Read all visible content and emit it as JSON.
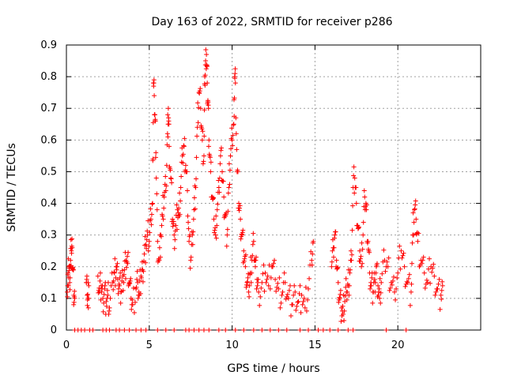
{
  "chart_data": {
    "type": "scatter",
    "title": "Day 163 of 2022, SRMTID for receiver p286",
    "xlabel": "GPS time / hours",
    "ylabel": "SRMTID / TECUs",
    "xlim": [
      0,
      25
    ],
    "ylim": [
      0,
      0.9
    ],
    "xticks": [
      0,
      5,
      10,
      15,
      20
    ],
    "xtick_labels": [
      "0",
      "5",
      "10",
      "15",
      "20"
    ],
    "yticks": [
      0,
      0.1,
      0.2,
      0.3,
      0.4,
      0.5,
      0.6,
      0.7,
      0.8,
      0.9
    ],
    "ytick_labels": [
      "0",
      "0.1",
      "0.2",
      "0.3",
      "0.4",
      "0.5",
      "0.6",
      "0.7",
      "0.8",
      "0.9"
    ],
    "grid": true,
    "marker": "+",
    "color": "#ff0000",
    "series": [
      {
        "name": "SRMTID",
        "points": [
          [
            0.05,
            0.12
          ],
          [
            0.1,
            0.18
          ],
          [
            0.15,
            0.2
          ],
          [
            0.2,
            0.15
          ],
          [
            0.25,
            0.22
          ],
          [
            0.3,
            0.25
          ],
          [
            0.35,
            0.26
          ],
          [
            0.4,
            0.19
          ],
          [
            0.45,
            0.11
          ],
          [
            0.5,
            0.1
          ],
          [
            1.2,
            0.15
          ],
          [
            1.25,
            0.11
          ],
          [
            1.3,
            0.1
          ],
          [
            1.35,
            0.14
          ],
          [
            1.9,
            0.17
          ],
          [
            2.0,
            0.12
          ],
          [
            2.1,
            0.14
          ],
          [
            2.2,
            0.1
          ],
          [
            2.3,
            0.13
          ],
          [
            2.4,
            0.09
          ],
          [
            2.5,
            0.11
          ],
          [
            2.6,
            0.07
          ],
          [
            2.8,
            0.15
          ],
          [
            2.9,
            0.18
          ],
          [
            3.0,
            0.2
          ],
          [
            3.1,
            0.16
          ],
          [
            3.2,
            0.14
          ],
          [
            3.3,
            0.12
          ],
          [
            3.4,
            0.17
          ],
          [
            3.5,
            0.19
          ],
          [
            3.6,
            0.22
          ],
          [
            3.7,
            0.21
          ],
          [
            3.8,
            0.15
          ],
          [
            3.9,
            0.1
          ],
          [
            4.0,
            0.08
          ],
          [
            4.2,
            0.13
          ],
          [
            4.3,
            0.15
          ],
          [
            4.4,
            0.11
          ],
          [
            4.5,
            0.17
          ],
          [
            4.6,
            0.19
          ],
          [
            4.7,
            0.24
          ],
          [
            4.8,
            0.27
          ],
          [
            4.9,
            0.3
          ],
          [
            5.0,
            0.28
          ],
          [
            5.1,
            0.35
          ],
          [
            5.2,
            0.4
          ],
          [
            5.25,
            0.78
          ],
          [
            5.3,
            0.74
          ],
          [
            5.35,
            0.66
          ],
          [
            5.4,
            0.56
          ],
          [
            5.5,
            0.28
          ],
          [
            5.6,
            0.22
          ],
          [
            5.7,
            0.3
          ],
          [
            5.8,
            0.36
          ],
          [
            5.9,
            0.42
          ],
          [
            6.0,
            0.44
          ],
          [
            6.1,
            0.62
          ],
          [
            6.15,
            0.7
          ],
          [
            6.2,
            0.58
          ],
          [
            6.3,
            0.48
          ],
          [
            6.4,
            0.35
          ],
          [
            6.5,
            0.3
          ],
          [
            6.6,
            0.33
          ],
          [
            6.7,
            0.38
          ],
          [
            6.8,
            0.36
          ],
          [
            6.9,
            0.45
          ],
          [
            7.0,
            0.55
          ],
          [
            7.1,
            0.58
          ],
          [
            7.2,
            0.52
          ],
          [
            7.3,
            0.44
          ],
          [
            7.4,
            0.28
          ],
          [
            7.5,
            0.22
          ],
          [
            7.6,
            0.3
          ],
          [
            7.7,
            0.38
          ],
          [
            7.8,
            0.45
          ],
          [
            7.9,
            0.64
          ],
          [
            8.0,
            0.75
          ],
          [
            8.1,
            0.7
          ],
          [
            8.2,
            0.6
          ],
          [
            8.3,
            0.55
          ],
          [
            8.35,
            0.8
          ],
          [
            8.4,
            0.85
          ],
          [
            8.45,
            0.87
          ],
          [
            8.5,
            0.78
          ],
          [
            8.55,
            0.72
          ],
          [
            8.6,
            0.6
          ],
          [
            8.7,
            0.5
          ],
          [
            8.8,
            0.42
          ],
          [
            8.9,
            0.35
          ],
          [
            9.0,
            0.3
          ],
          [
            9.1,
            0.38
          ],
          [
            9.2,
            0.45
          ],
          [
            9.3,
            0.55
          ],
          [
            9.4,
            0.5
          ],
          [
            9.5,
            0.42
          ],
          [
            9.6,
            0.36
          ],
          [
            9.7,
            0.3
          ],
          [
            9.8,
            0.45
          ],
          [
            9.9,
            0.55
          ],
          [
            10.0,
            0.6
          ],
          [
            10.1,
            0.65
          ],
          [
            10.15,
            0.8
          ],
          [
            10.2,
            0.78
          ],
          [
            10.3,
            0.5
          ],
          [
            10.4,
            0.4
          ],
          [
            10.5,
            0.35
          ],
          [
            10.6,
            0.3
          ],
          [
            10.7,
            0.25
          ],
          [
            10.8,
            0.2
          ],
          [
            10.9,
            0.15
          ],
          [
            11.0,
            0.12
          ],
          [
            11.1,
            0.18
          ],
          [
            11.2,
            0.22
          ],
          [
            11.3,
            0.28
          ],
          [
            11.4,
            0.2
          ],
          [
            11.5,
            0.16
          ],
          [
            11.6,
            0.12
          ],
          [
            11.8,
            0.15
          ],
          [
            12.0,
            0.18
          ],
          [
            12.2,
            0.14
          ],
          [
            12.4,
            0.2
          ],
          [
            12.6,
            0.16
          ],
          [
            12.8,
            0.13
          ],
          [
            13.0,
            0.11
          ],
          [
            13.2,
            0.15
          ],
          [
            13.4,
            0.1
          ],
          [
            13.6,
            0.08
          ],
          [
            13.8,
            0.12
          ],
          [
            14.0,
            0.09
          ],
          [
            14.2,
            0.11
          ],
          [
            14.4,
            0.07
          ],
          [
            14.6,
            0.13
          ],
          [
            14.8,
            0.22
          ],
          [
            14.9,
            0.28
          ],
          [
            16.0,
            0.2
          ],
          [
            16.1,
            0.26
          ],
          [
            16.2,
            0.3
          ],
          [
            16.3,
            0.22
          ],
          [
            16.4,
            0.15
          ],
          [
            16.5,
            0.1
          ],
          [
            16.6,
            0.07
          ],
          [
            16.7,
            0.05
          ],
          [
            16.8,
            0.09
          ],
          [
            16.9,
            0.12
          ],
          [
            17.0,
            0.14
          ],
          [
            17.1,
            0.18
          ],
          [
            17.2,
            0.22
          ],
          [
            17.3,
            0.45
          ],
          [
            17.4,
            0.48
          ],
          [
            17.5,
            0.4
          ],
          [
            17.6,
            0.32
          ],
          [
            17.7,
            0.25
          ],
          [
            17.8,
            0.2
          ],
          [
            17.9,
            0.3
          ],
          [
            18.0,
            0.42
          ],
          [
            18.1,
            0.38
          ],
          [
            18.2,
            0.28
          ],
          [
            18.3,
            0.18
          ],
          [
            18.4,
            0.14
          ],
          [
            18.5,
            0.12
          ],
          [
            18.6,
            0.16
          ],
          [
            18.7,
            0.2
          ],
          [
            18.8,
            0.14
          ],
          [
            18.9,
            0.1
          ],
          [
            19.0,
            0.15
          ],
          [
            19.2,
            0.22
          ],
          [
            19.4,
            0.2
          ],
          [
            19.6,
            0.15
          ],
          [
            19.8,
            0.12
          ],
          [
            20.0,
            0.18
          ],
          [
            20.2,
            0.25
          ],
          [
            20.4,
            0.2
          ],
          [
            20.6,
            0.15
          ],
          [
            20.8,
            0.12
          ],
          [
            20.9,
            0.3
          ],
          [
            21.0,
            0.38
          ],
          [
            21.1,
            0.35
          ],
          [
            21.2,
            0.28
          ],
          [
            21.4,
            0.22
          ],
          [
            21.6,
            0.18
          ],
          [
            21.8,
            0.15
          ],
          [
            22.0,
            0.2
          ],
          [
            22.2,
            0.17
          ],
          [
            22.4,
            0.13
          ],
          [
            22.6,
            0.11
          ],
          [
            22.7,
            0.14
          ]
        ],
        "zero_points_x": [
          0.5,
          0.7,
          0.9,
          1.1,
          1.4,
          1.6,
          2.2,
          2.4,
          2.6,
          3.0,
          3.2,
          3.5,
          3.8,
          4.2,
          4.5,
          4.8,
          5.5,
          6.0,
          6.5,
          7.2,
          7.4,
          7.7,
          8.0,
          8.3,
          8.6,
          9.2,
          9.6,
          10.2,
          10.7,
          11.3,
          11.8,
          12.3,
          12.8,
          13.3,
          14.1,
          14.6,
          15.2,
          15.5,
          15.9,
          16.4,
          17.0,
          17.3,
          19.3,
          20.5
        ]
      }
    ]
  }
}
